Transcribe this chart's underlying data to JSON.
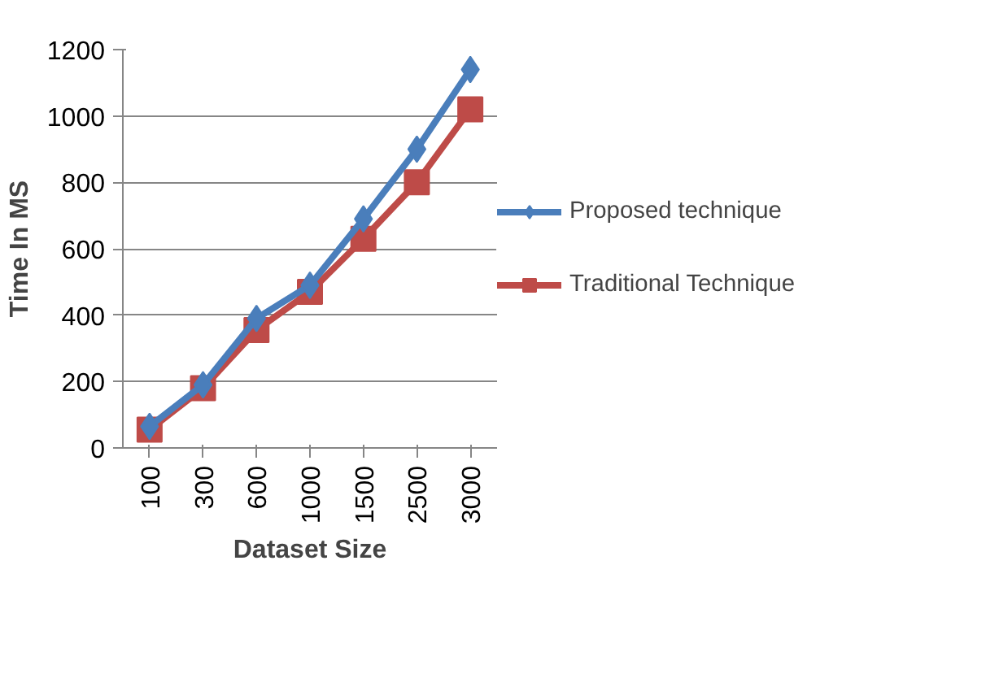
{
  "chart_data": {
    "type": "line",
    "xlabel": "Dataset Size",
    "ylabel": "Time In MS",
    "categories": [
      "100",
      "300",
      "600",
      "1000",
      "1500",
      "2500",
      "3000"
    ],
    "series": [
      {
        "name": "Proposed technique",
        "color": "#4a7ebb",
        "marker": "diamond",
        "values": [
          65,
          190,
          390,
          490,
          690,
          900,
          1140
        ]
      },
      {
        "name": "Traditional Technique",
        "color": "#be4b48",
        "marker": "square",
        "values": [
          55,
          180,
          355,
          470,
          630,
          800,
          1020
        ]
      }
    ],
    "ylim": [
      0,
      1200
    ],
    "yticks": [
      0,
      200,
      400,
      600,
      800,
      1000,
      1200
    ],
    "grid": "y",
    "legend": "right",
    "line_style": "solid"
  }
}
